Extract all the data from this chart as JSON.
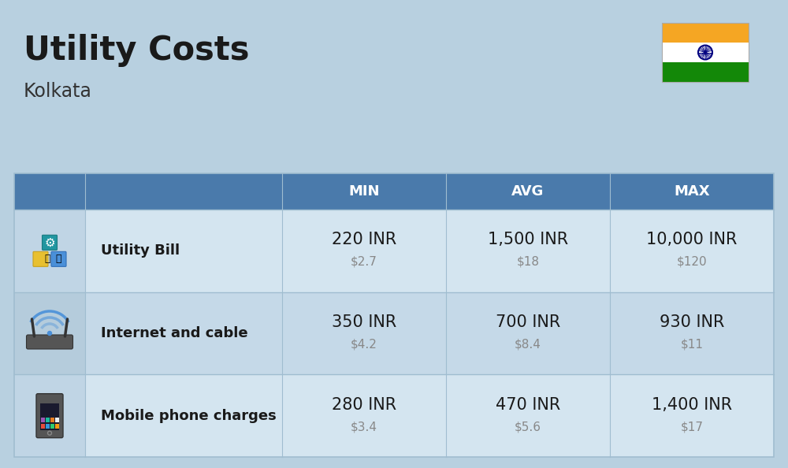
{
  "title": "Utility Costs",
  "subtitle": "Kolkata",
  "background_color": "#b8d0e0",
  "header_bg_color": "#4a7aab",
  "header_text_color": "#ffffff",
  "row_bg_light": "#d4e5f0",
  "row_bg_dark": "#c5d9e8",
  "icon_bg_light": "#c0d5e5",
  "icon_bg_dark": "#b5ccdc",
  "divider_color": "#a0bdd0",
  "col_headers": [
    "MIN",
    "AVG",
    "MAX"
  ],
  "rows": [
    {
      "label": "Utility Bill",
      "min_inr": "220 INR",
      "min_usd": "$2.7",
      "avg_inr": "1,500 INR",
      "avg_usd": "$18",
      "max_inr": "10,000 INR",
      "max_usd": "$120"
    },
    {
      "label": "Internet and cable",
      "min_inr": "350 INR",
      "min_usd": "$4.2",
      "avg_inr": "700 INR",
      "avg_usd": "$8.4",
      "max_inr": "930 INR",
      "max_usd": "$11"
    },
    {
      "label": "Mobile phone charges",
      "min_inr": "280 INR",
      "min_usd": "$3.4",
      "avg_inr": "470 INR",
      "avg_usd": "$5.6",
      "max_inr": "1,400 INR",
      "max_usd": "$17"
    }
  ],
  "title_fontsize": 30,
  "subtitle_fontsize": 17,
  "header_fontsize": 13,
  "label_fontsize": 13,
  "value_fontsize": 15,
  "usd_fontsize": 11,
  "usd_color": "#888888",
  "text_color": "#1a1a1a"
}
